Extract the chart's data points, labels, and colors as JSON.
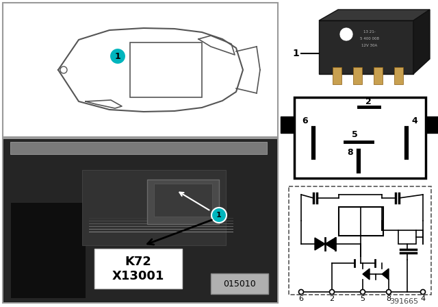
{
  "bg_color": "#ffffff",
  "image_number": "391665",
  "diagram_number": "015010",
  "teal_color": "#00B5BD",
  "connector_pins": [
    "6",
    "2",
    "5",
    "8",
    "4"
  ]
}
